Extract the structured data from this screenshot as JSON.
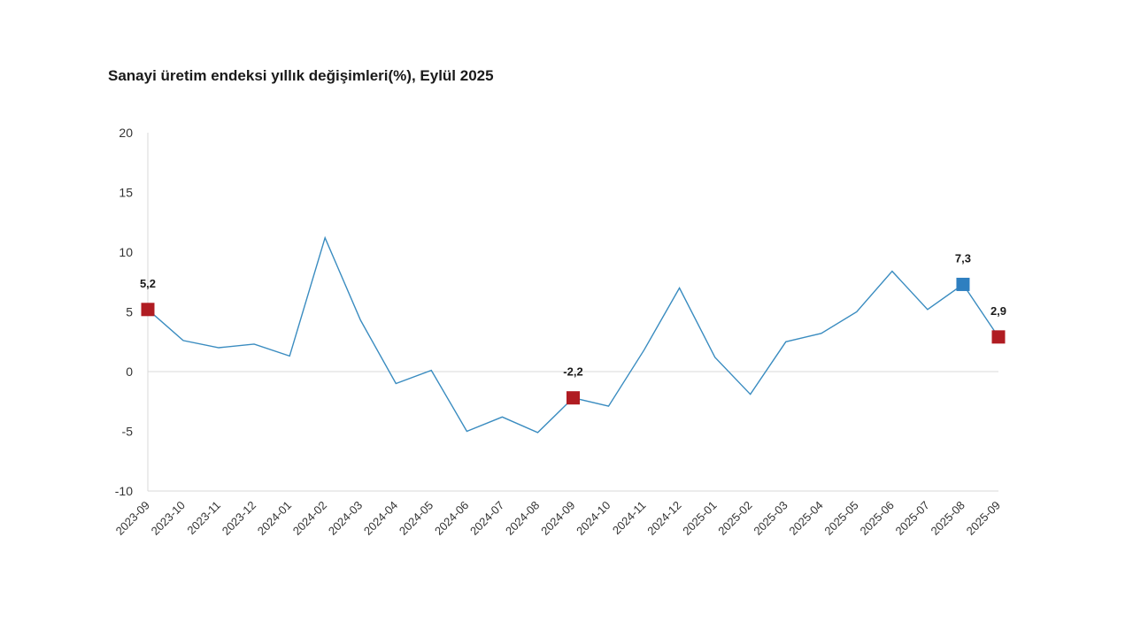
{
  "chart_data": {
    "type": "line",
    "title": "Sanayi üretim endeksi yıllık değişimleri(%), Eylül 2025",
    "xlabel": "",
    "ylabel": "",
    "ylim": [
      -10,
      20
    ],
    "yticks": [
      "20",
      "15",
      "10",
      "5",
      "0",
      "-5",
      "-10"
    ],
    "ytick_values": [
      20,
      15,
      10,
      5,
      0,
      -5,
      -10
    ],
    "grid": false,
    "categories": [
      "2023-09",
      "2023-10",
      "2023-11",
      "2023-12",
      "2024-01",
      "2024-02",
      "2024-03",
      "2024-04",
      "2024-05",
      "2024-06",
      "2024-07",
      "2024-08",
      "2024-09",
      "2024-10",
      "2024-11",
      "2024-12",
      "2025-01",
      "2025-02",
      "2025-03",
      "2025-04",
      "2025-05",
      "2025-06",
      "2025-07",
      "2025-08",
      "2025-09"
    ],
    "series": [
      {
        "values": [
          5.2,
          2.6,
          2.0,
          2.3,
          1.3,
          11.2,
          4.3,
          -1.0,
          0.1,
          -5.0,
          -3.8,
          -5.1,
          -2.2,
          -2.9,
          1.8,
          7.0,
          1.2,
          -1.9,
          2.5,
          3.2,
          5.0,
          8.4,
          5.2,
          7.3,
          2.9
        ],
        "color": "#3a8cc0"
      }
    ],
    "highlights": [
      {
        "category": "2023-09",
        "value": 5.2,
        "label": "5,2",
        "color": "#b01c22"
      },
      {
        "category": "2024-09",
        "value": -2.2,
        "label": "-2,2",
        "color": "#b01c22"
      },
      {
        "category": "2025-08",
        "value": 7.3,
        "label": "7,3",
        "color": "#2e7fc0"
      },
      {
        "category": "2025-09",
        "value": 2.9,
        "label": "2,9",
        "color": "#b01c22"
      }
    ],
    "colors": {
      "line": "#3a8cc0",
      "axis": "#d9d9d9",
      "zero_line": "#d9d9d9"
    }
  }
}
